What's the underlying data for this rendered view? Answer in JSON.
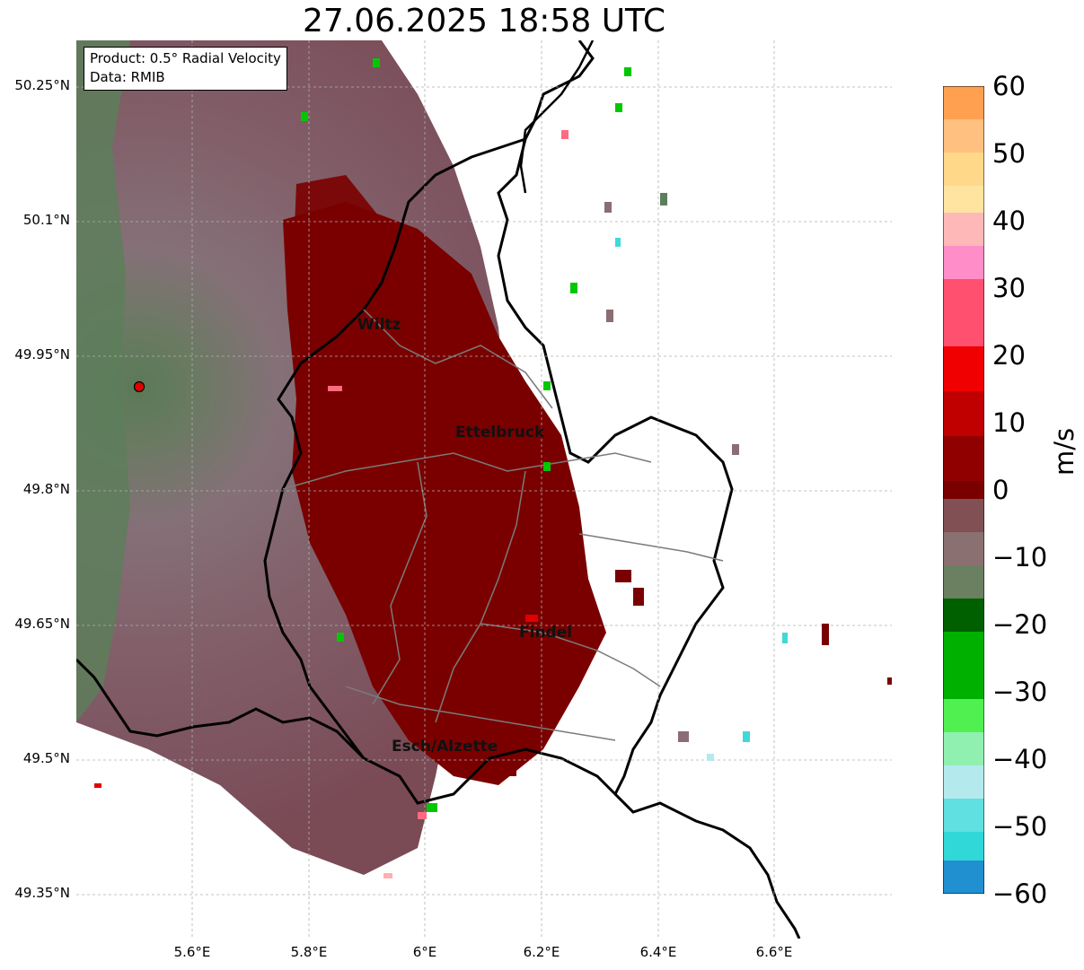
{
  "title": "27.06.2025 18:58 UTC",
  "info": {
    "product": "Product: 0.5° Radial Velocity",
    "data": "Data: RMIB"
  },
  "lat_ticks": [
    "50.25°N",
    "50.1°N",
    "49.95°N",
    "49.8°N",
    "49.65°N",
    "49.5°N",
    "49.35°N"
  ],
  "lon_ticks": [
    "5.6°E",
    "5.8°E",
    "6°E",
    "6.2°E",
    "6.4°E",
    "6.6°E"
  ],
  "cities": [
    "Wiltz",
    "Ettelbruck",
    "Findel",
    "Esch/Alzette"
  ],
  "radar_marker": {
    "color": "#e00000"
  },
  "colorbar": {
    "label": "m/s",
    "ticks": [
      "60",
      "50",
      "40",
      "30",
      "20",
      "10",
      "0",
      "−10",
      "−20",
      "−30",
      "−40",
      "−50",
      "−60"
    ],
    "range": [
      -60,
      60
    ]
  },
  "colors": {
    "outbound_dark": "#7a0000",
    "outbound_red": "#e00000",
    "outbound_pink": "#ff6a80",
    "near_zero": "#8a6e74",
    "inbound_green": "#00c800",
    "inbound_cyan": "#40d8d8"
  }
}
